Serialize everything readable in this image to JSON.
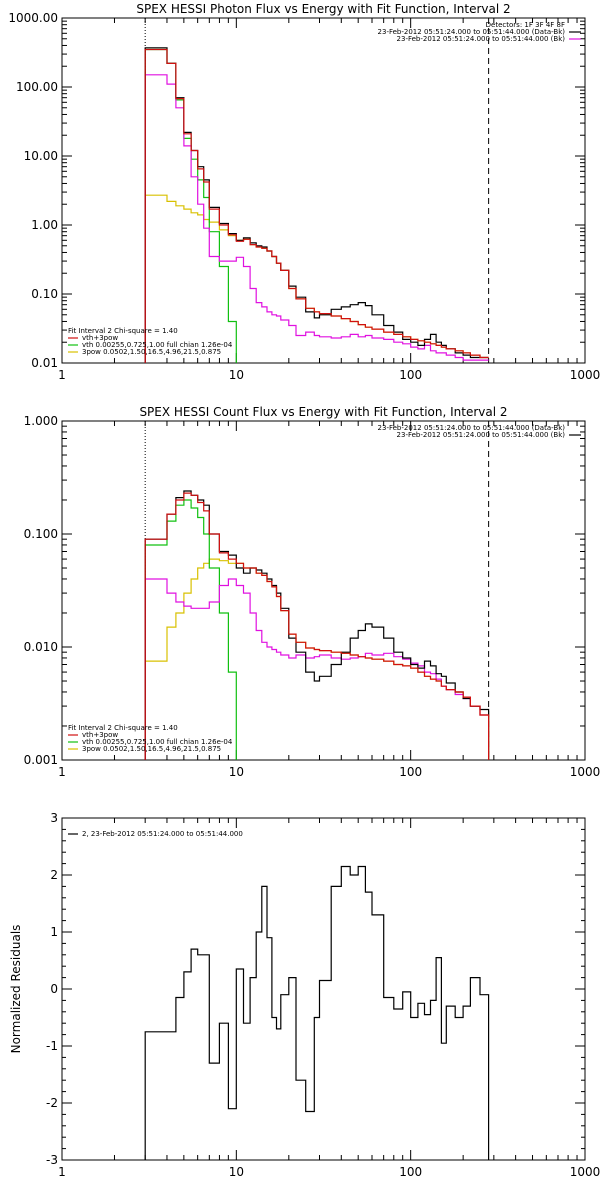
{
  "colors": {
    "data": "#000000",
    "model_total": "#d01010",
    "thermal": "#10c010",
    "powerlaw": "#d8c000",
    "background": "#e010e0",
    "frame": "#000000"
  },
  "chart_data": [
    {
      "type": "line",
      "title": "SPEX HESSI Photon Flux vs Energy with Fit Function, Interval 2",
      "xscale": "log",
      "yscale": "log",
      "xlim": [
        1,
        1000
      ],
      "ylim": [
        0.01,
        1000
      ],
      "xticks": [
        "1",
        "10",
        "100",
        "1000"
      ],
      "yticks": [
        "0.01",
        "0.10",
        "1.00",
        "10.00",
        "100.00",
        "1000.00"
      ],
      "vlines": [
        3,
        280
      ],
      "info_lines": [
        "Detectors: 1F 3F 4F 8F",
        "23-Feb-2012 05:51:24.000 to 05:51:44.000 (Data-Bk)",
        "23-Feb-2012 05:51:24.000 to 05:51:44.000 (Bk)"
      ],
      "legend_title": "Fit Interval 2   Chi-square = 1.40",
      "legend_items": [
        "vth+3pow",
        "vth 0.00255,0.725,1.00   full chian 1.26e-04",
        "3pow 0.0502,1.50,16.5,4.96,21.5,0.875"
      ],
      "series": [
        {
          "key": "data",
          "x": [
            3,
            3.5,
            4,
            4.5,
            5,
            5.5,
            6,
            6.5,
            7,
            8,
            9,
            10,
            11,
            12,
            13,
            14,
            15,
            16,
            17,
            18,
            20,
            22,
            25,
            28,
            30,
            35,
            40,
            45,
            50,
            55,
            60,
            70,
            80,
            90,
            100,
            110,
            120,
            130,
            140,
            150,
            160,
            180,
            200,
            220,
            250,
            280
          ],
          "y": [
            370,
            370,
            220,
            70,
            22,
            12,
            7,
            4.5,
            1.8,
            1.05,
            0.75,
            0.6,
            0.65,
            0.55,
            0.5,
            0.48,
            0.42,
            0.35,
            0.28,
            0.22,
            0.13,
            0.09,
            0.055,
            0.045,
            0.05,
            0.06,
            0.065,
            0.07,
            0.075,
            0.068,
            0.05,
            0.035,
            0.028,
            0.022,
            0.02,
            0.018,
            0.022,
            0.026,
            0.02,
            0.018,
            0.016,
            0.014,
            0.013,
            0.012,
            0.012,
            0.012
          ]
        },
        {
          "key": "model_total",
          "x": [
            3,
            3.5,
            4,
            4.5,
            5,
            5.5,
            6,
            6.5,
            7,
            8,
            9,
            10,
            11,
            12,
            13,
            14,
            15,
            16,
            17,
            18,
            20,
            22,
            25,
            28,
            30,
            35,
            40,
            45,
            50,
            55,
            60,
            70,
            80,
            90,
            100,
            110,
            120,
            130,
            140,
            150,
            160,
            180,
            200,
            220,
            250,
            280
          ],
          "y": [
            350,
            350,
            220,
            68,
            21,
            12,
            6.5,
            4.2,
            1.7,
            1.0,
            0.72,
            0.58,
            0.62,
            0.52,
            0.48,
            0.46,
            0.42,
            0.35,
            0.28,
            0.22,
            0.12,
            0.085,
            0.062,
            0.055,
            0.052,
            0.048,
            0.044,
            0.04,
            0.036,
            0.033,
            0.031,
            0.028,
            0.026,
            0.024,
            0.022,
            0.021,
            0.02,
            0.019,
            0.018,
            0.017,
            0.016,
            0.015,
            0.014,
            0.013,
            0.012,
            0.012
          ]
        },
        {
          "key": "thermal",
          "x": [
            3,
            3.5,
            4,
            4.5,
            5,
            5.5,
            6,
            6.5,
            7,
            8,
            9,
            10
          ],
          "y": [
            350,
            350,
            220,
            65,
            18,
            9,
            4.5,
            2.5,
            0.8,
            0.25,
            0.04,
            0.005
          ]
        },
        {
          "key": "powerlaw",
          "x": [
            3,
            3.5,
            4,
            4.5,
            5,
            5.5,
            6,
            6.5,
            7,
            8,
            9,
            10,
            11,
            12,
            13,
            14,
            15,
            16,
            17,
            18,
            20,
            22,
            25,
            28,
            30,
            35,
            40,
            45,
            50,
            55,
            60,
            70,
            80,
            90,
            100,
            110,
            120,
            130,
            140,
            150,
            160,
            180,
            200,
            220,
            250,
            280
          ],
          "y": [
            2.7,
            2.7,
            2.2,
            1.9,
            1.7,
            1.5,
            1.4,
            1.2,
            1.1,
            0.85,
            0.7,
            0.6,
            0.62,
            0.52,
            0.48,
            0.46,
            0.42,
            0.35,
            0.28,
            0.22,
            0.12,
            0.085,
            0.062,
            0.055,
            0.052,
            0.048,
            0.044,
            0.04,
            0.036,
            0.033,
            0.031,
            0.028,
            0.026,
            0.024,
            0.022,
            0.021,
            0.02,
            0.019,
            0.018,
            0.017,
            0.016,
            0.015,
            0.014,
            0.013,
            0.012,
            0.012
          ]
        },
        {
          "key": "background",
          "x": [
            3,
            3.5,
            4,
            4.5,
            5,
            5.5,
            6,
            6.5,
            7,
            8,
            9,
            10,
            11,
            12,
            13,
            14,
            15,
            16,
            17,
            18,
            20,
            22,
            25,
            28,
            30,
            35,
            40,
            45,
            50,
            55,
            60,
            70,
            80,
            90,
            100,
            110,
            120,
            130,
            140,
            150,
            160,
            180,
            200,
            220,
            250,
            280
          ],
          "y": [
            150,
            150,
            110,
            50,
            14,
            5,
            2,
            0.9,
            0.35,
            0.3,
            0.3,
            0.34,
            0.25,
            0.12,
            0.075,
            0.065,
            0.055,
            0.05,
            0.048,
            0.042,
            0.035,
            0.025,
            0.028,
            0.025,
            0.024,
            0.023,
            0.024,
            0.026,
            0.024,
            0.025,
            0.023,
            0.022,
            0.02,
            0.019,
            0.017,
            0.016,
            0.018,
            0.015,
            0.014,
            0.014,
            0.013,
            0.012,
            0.011,
            0.011,
            0.011,
            0.011
          ]
        }
      ]
    },
    {
      "type": "line",
      "title": "SPEX HESSI Count Flux vs Energy with Fit Function, Interval 2",
      "xscale": "log",
      "yscale": "log",
      "xlim": [
        1,
        1000
      ],
      "ylim": [
        0.001,
        1
      ],
      "xticks": [
        "1",
        "10",
        "100",
        "1000"
      ],
      "yticks": [
        "0.001",
        "0.010",
        "0.100",
        "1.000"
      ],
      "vlines": [
        3,
        280
      ],
      "info_lines": [
        "23-Feb-2012 05:51:24.000 to 05:51:44.000 (Data-Bk)",
        "23-Feb-2012 05:51:24.000 to 05:51:44.000 (Bk)"
      ],
      "legend_title": "Fit Interval 2   Chi-square = 1.40",
      "legend_items": [
        "vth+3pow",
        "vth 0.00255,0.725,1.00   full chian 1.26e-04",
        "3pow 0.0502,1.50,16.5,4.96,21.5,0.875"
      ],
      "series": [
        {
          "key": "data",
          "x": [
            3,
            3.5,
            4,
            4.5,
            5,
            5.5,
            6,
            6.5,
            7,
            8,
            9,
            10,
            11,
            12,
            13,
            14,
            15,
            16,
            17,
            18,
            20,
            22,
            25,
            28,
            30,
            35,
            40,
            45,
            50,
            55,
            60,
            70,
            80,
            90,
            100,
            110,
            120,
            130,
            140,
            150,
            160,
            180,
            200,
            220,
            250,
            280
          ],
          "y": [
            0.09,
            0.09,
            0.15,
            0.21,
            0.24,
            0.22,
            0.2,
            0.18,
            0.1,
            0.07,
            0.065,
            0.05,
            0.045,
            0.05,
            0.048,
            0.045,
            0.04,
            0.035,
            0.03,
            0.022,
            0.012,
            0.009,
            0.006,
            0.005,
            0.0055,
            0.007,
            0.009,
            0.012,
            0.014,
            0.016,
            0.015,
            0.012,
            0.009,
            0.008,
            0.007,
            0.0065,
            0.0075,
            0.0068,
            0.0058,
            0.0055,
            0.0048,
            0.004,
            0.0035,
            0.003,
            0.0028,
            0.001
          ]
        },
        {
          "key": "model_total",
          "x": [
            3,
            3.5,
            4,
            4.5,
            5,
            5.5,
            6,
            6.5,
            7,
            8,
            9,
            10,
            11,
            12,
            13,
            14,
            15,
            16,
            17,
            18,
            20,
            22,
            25,
            28,
            30,
            35,
            40,
            45,
            50,
            55,
            60,
            70,
            80,
            90,
            100,
            110,
            120,
            130,
            140,
            150,
            160,
            180,
            200,
            220,
            250,
            280
          ],
          "y": [
            0.09,
            0.09,
            0.15,
            0.2,
            0.23,
            0.22,
            0.19,
            0.16,
            0.1,
            0.068,
            0.06,
            0.055,
            0.05,
            0.05,
            0.045,
            0.043,
            0.038,
            0.034,
            0.028,
            0.021,
            0.013,
            0.011,
            0.0098,
            0.0095,
            0.0093,
            0.009,
            0.0088,
            0.0085,
            0.0082,
            0.008,
            0.0078,
            0.0075,
            0.007,
            0.0068,
            0.0065,
            0.006,
            0.0055,
            0.0052,
            0.005,
            0.0045,
            0.0042,
            0.004,
            0.0036,
            0.003,
            0.0025,
            0.001
          ]
        },
        {
          "key": "thermal",
          "x": [
            3,
            3.5,
            4,
            4.5,
            5,
            5.5,
            6,
            6.5,
            7,
            8,
            9,
            10
          ],
          "y": [
            0.08,
            0.08,
            0.13,
            0.18,
            0.2,
            0.17,
            0.14,
            0.1,
            0.05,
            0.02,
            0.006,
            0.0005
          ]
        },
        {
          "key": "powerlaw",
          "x": [
            3,
            3.5,
            4,
            4.5,
            5,
            5.5,
            6,
            6.5,
            7,
            8,
            9,
            10,
            11,
            12,
            13,
            14,
            15,
            16,
            17,
            18,
            20,
            22,
            25,
            28,
            30,
            35,
            40,
            45,
            50,
            55,
            60,
            70,
            80,
            90,
            100,
            110,
            120,
            130,
            140,
            150,
            160,
            180,
            200,
            220,
            250,
            280
          ],
          "y": [
            0.0075,
            0.0075,
            0.015,
            0.02,
            0.03,
            0.04,
            0.05,
            0.055,
            0.06,
            0.058,
            0.055,
            0.055,
            0.05,
            0.05,
            0.045,
            0.043,
            0.038,
            0.034,
            0.028,
            0.021,
            0.013,
            0.011,
            0.0098,
            0.0095,
            0.0093,
            0.009,
            0.0088,
            0.0085,
            0.0082,
            0.008,
            0.0078,
            0.0075,
            0.007,
            0.0068,
            0.0065,
            0.006,
            0.0055,
            0.0052,
            0.005,
            0.0045,
            0.0042,
            0.004,
            0.0036,
            0.003,
            0.0025,
            0.001
          ]
        },
        {
          "key": "background",
          "x": [
            3,
            3.5,
            4,
            4.5,
            5,
            5.5,
            6,
            6.5,
            7,
            8,
            9,
            10,
            11,
            12,
            13,
            14,
            15,
            16,
            17,
            18,
            20,
            22,
            25,
            28,
            30,
            35,
            40,
            45,
            50,
            55,
            60,
            70,
            80,
            90,
            100,
            110,
            120,
            130,
            140,
            150,
            160,
            180,
            200,
            220,
            250,
            280
          ],
          "y": [
            0.04,
            0.04,
            0.03,
            0.025,
            0.023,
            0.022,
            0.022,
            0.022,
            0.025,
            0.035,
            0.04,
            0.035,
            0.03,
            0.02,
            0.014,
            0.011,
            0.01,
            0.0095,
            0.009,
            0.0085,
            0.008,
            0.0085,
            0.008,
            0.0082,
            0.0085,
            0.008,
            0.0078,
            0.008,
            0.0082,
            0.0088,
            0.0085,
            0.0088,
            0.0082,
            0.0078,
            0.0072,
            0.0068,
            0.006,
            0.0058,
            0.0052,
            0.0045,
            0.0042,
            0.0038,
            0.0035,
            0.003,
            0.0025,
            0.0025
          ]
        }
      ]
    },
    {
      "type": "line",
      "title": "",
      "xscale": "log",
      "yscale": "linear",
      "xlim": [
        1,
        1000
      ],
      "ylim": [
        -3,
        3
      ],
      "xticks": [
        "1",
        "10",
        "100",
        "1000"
      ],
      "yticks": [
        "-3",
        "-2",
        "-1",
        "0",
        "1",
        "2",
        "3"
      ],
      "ylabel": "Normalized Residuals",
      "legend_items": [
        "2, 23-Feb-2012 05:51:24.000 to 05:51:44.000"
      ],
      "series": [
        {
          "key": "data",
          "x": [
            3,
            3.5,
            4,
            4.5,
            5,
            5.5,
            6,
            6.5,
            7,
            8,
            9,
            10,
            11,
            12,
            13,
            14,
            15,
            16,
            17,
            18,
            20,
            22,
            25,
            28,
            30,
            35,
            40,
            45,
            50,
            55,
            60,
            70,
            80,
            90,
            100,
            110,
            120,
            130,
            140,
            150,
            160,
            180,
            200,
            220,
            250,
            280
          ],
          "y": [
            -0.75,
            -0.75,
            -0.75,
            -0.15,
            0.3,
            0.7,
            0.6,
            0.6,
            -1.3,
            -0.6,
            -2.1,
            0.35,
            -0.6,
            0.2,
            1.0,
            1.8,
            0.9,
            -0.5,
            -0.7,
            -0.1,
            0.2,
            -1.6,
            -2.15,
            -0.5,
            0.15,
            1.8,
            2.15,
            2.0,
            2.15,
            1.7,
            1.3,
            -0.15,
            -0.35,
            -0.05,
            -0.5,
            -0.25,
            -0.45,
            -0.2,
            0.55,
            -0.95,
            -0.3,
            -0.5,
            -0.3,
            0.2,
            -0.1,
            -3
          ]
        }
      ]
    }
  ]
}
